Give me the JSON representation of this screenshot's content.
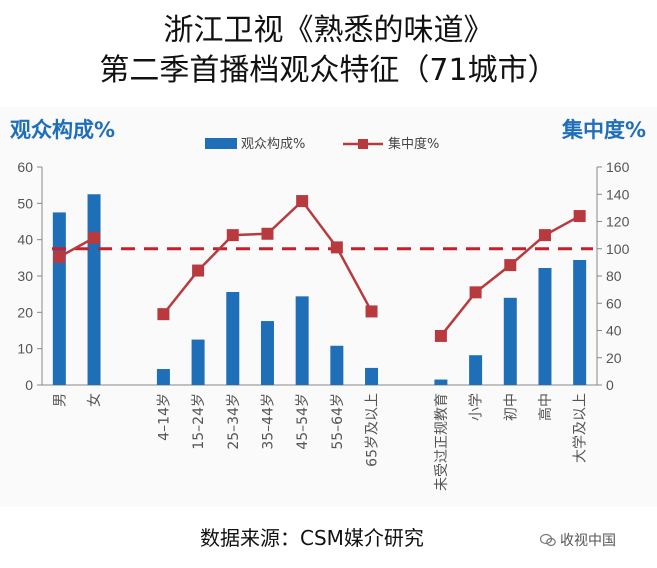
{
  "page": {
    "title_line1": "浙江卫视《熟悉的味道》",
    "title_line2": "第二季首播档观众特征（71城市）",
    "source": "数据来源：CSM媒介研究",
    "watermark": "收视中国"
  },
  "chart_data": {
    "type": "bar",
    "left_axis_title": "观众构成%",
    "right_axis_title": "集中度%",
    "categories": [
      "男",
      "女",
      "",
      "4–14岁",
      "15–24岁",
      "25–34岁",
      "35–44岁",
      "45–54岁",
      "55–64岁",
      "65岁及以上",
      "",
      "未受过正规教育",
      "小学",
      "初中",
      "高中",
      "大学及以上"
    ],
    "ylim_left": [
      0,
      60
    ],
    "ylim_right": [
      0,
      160
    ],
    "yticks_left": [
      0,
      10,
      20,
      30,
      40,
      50,
      60
    ],
    "yticks_right": [
      0,
      20,
      40,
      60,
      80,
      100,
      120,
      140,
      160
    ],
    "reference_line": 100,
    "series": [
      {
        "name": "观众构成%",
        "type": "bar",
        "axis": "left",
        "color": "#1f6fb8",
        "values": [
          47.5,
          52.5,
          null,
          4.4,
          12.5,
          25.6,
          17.6,
          24.4,
          10.8,
          4.7,
          null,
          1.5,
          8.2,
          24.0,
          32.2,
          34.4
        ]
      },
      {
        "name": "集中度%",
        "type": "line",
        "axis": "right",
        "color": "#b83a3f",
        "segments": [
          {
            "categories": [
              0,
              1
            ],
            "values": [
              94,
              108
            ]
          },
          {
            "categories": [
              3,
              4,
              5,
              6,
              7,
              8,
              9
            ],
            "values": [
              52,
              84,
              110,
              111,
              135,
              101,
              54
            ]
          },
          {
            "categories": [
              11,
              12,
              13,
              14,
              15
            ],
            "values": [
              36,
              68,
              88,
              110,
              124
            ]
          }
        ]
      }
    ],
    "colors": {
      "bar": "#1f6fb8",
      "line": "#b83a3f",
      "refline": "#c8202a",
      "axis_title": "#1f6fb8"
    },
    "legend_position": "top"
  }
}
